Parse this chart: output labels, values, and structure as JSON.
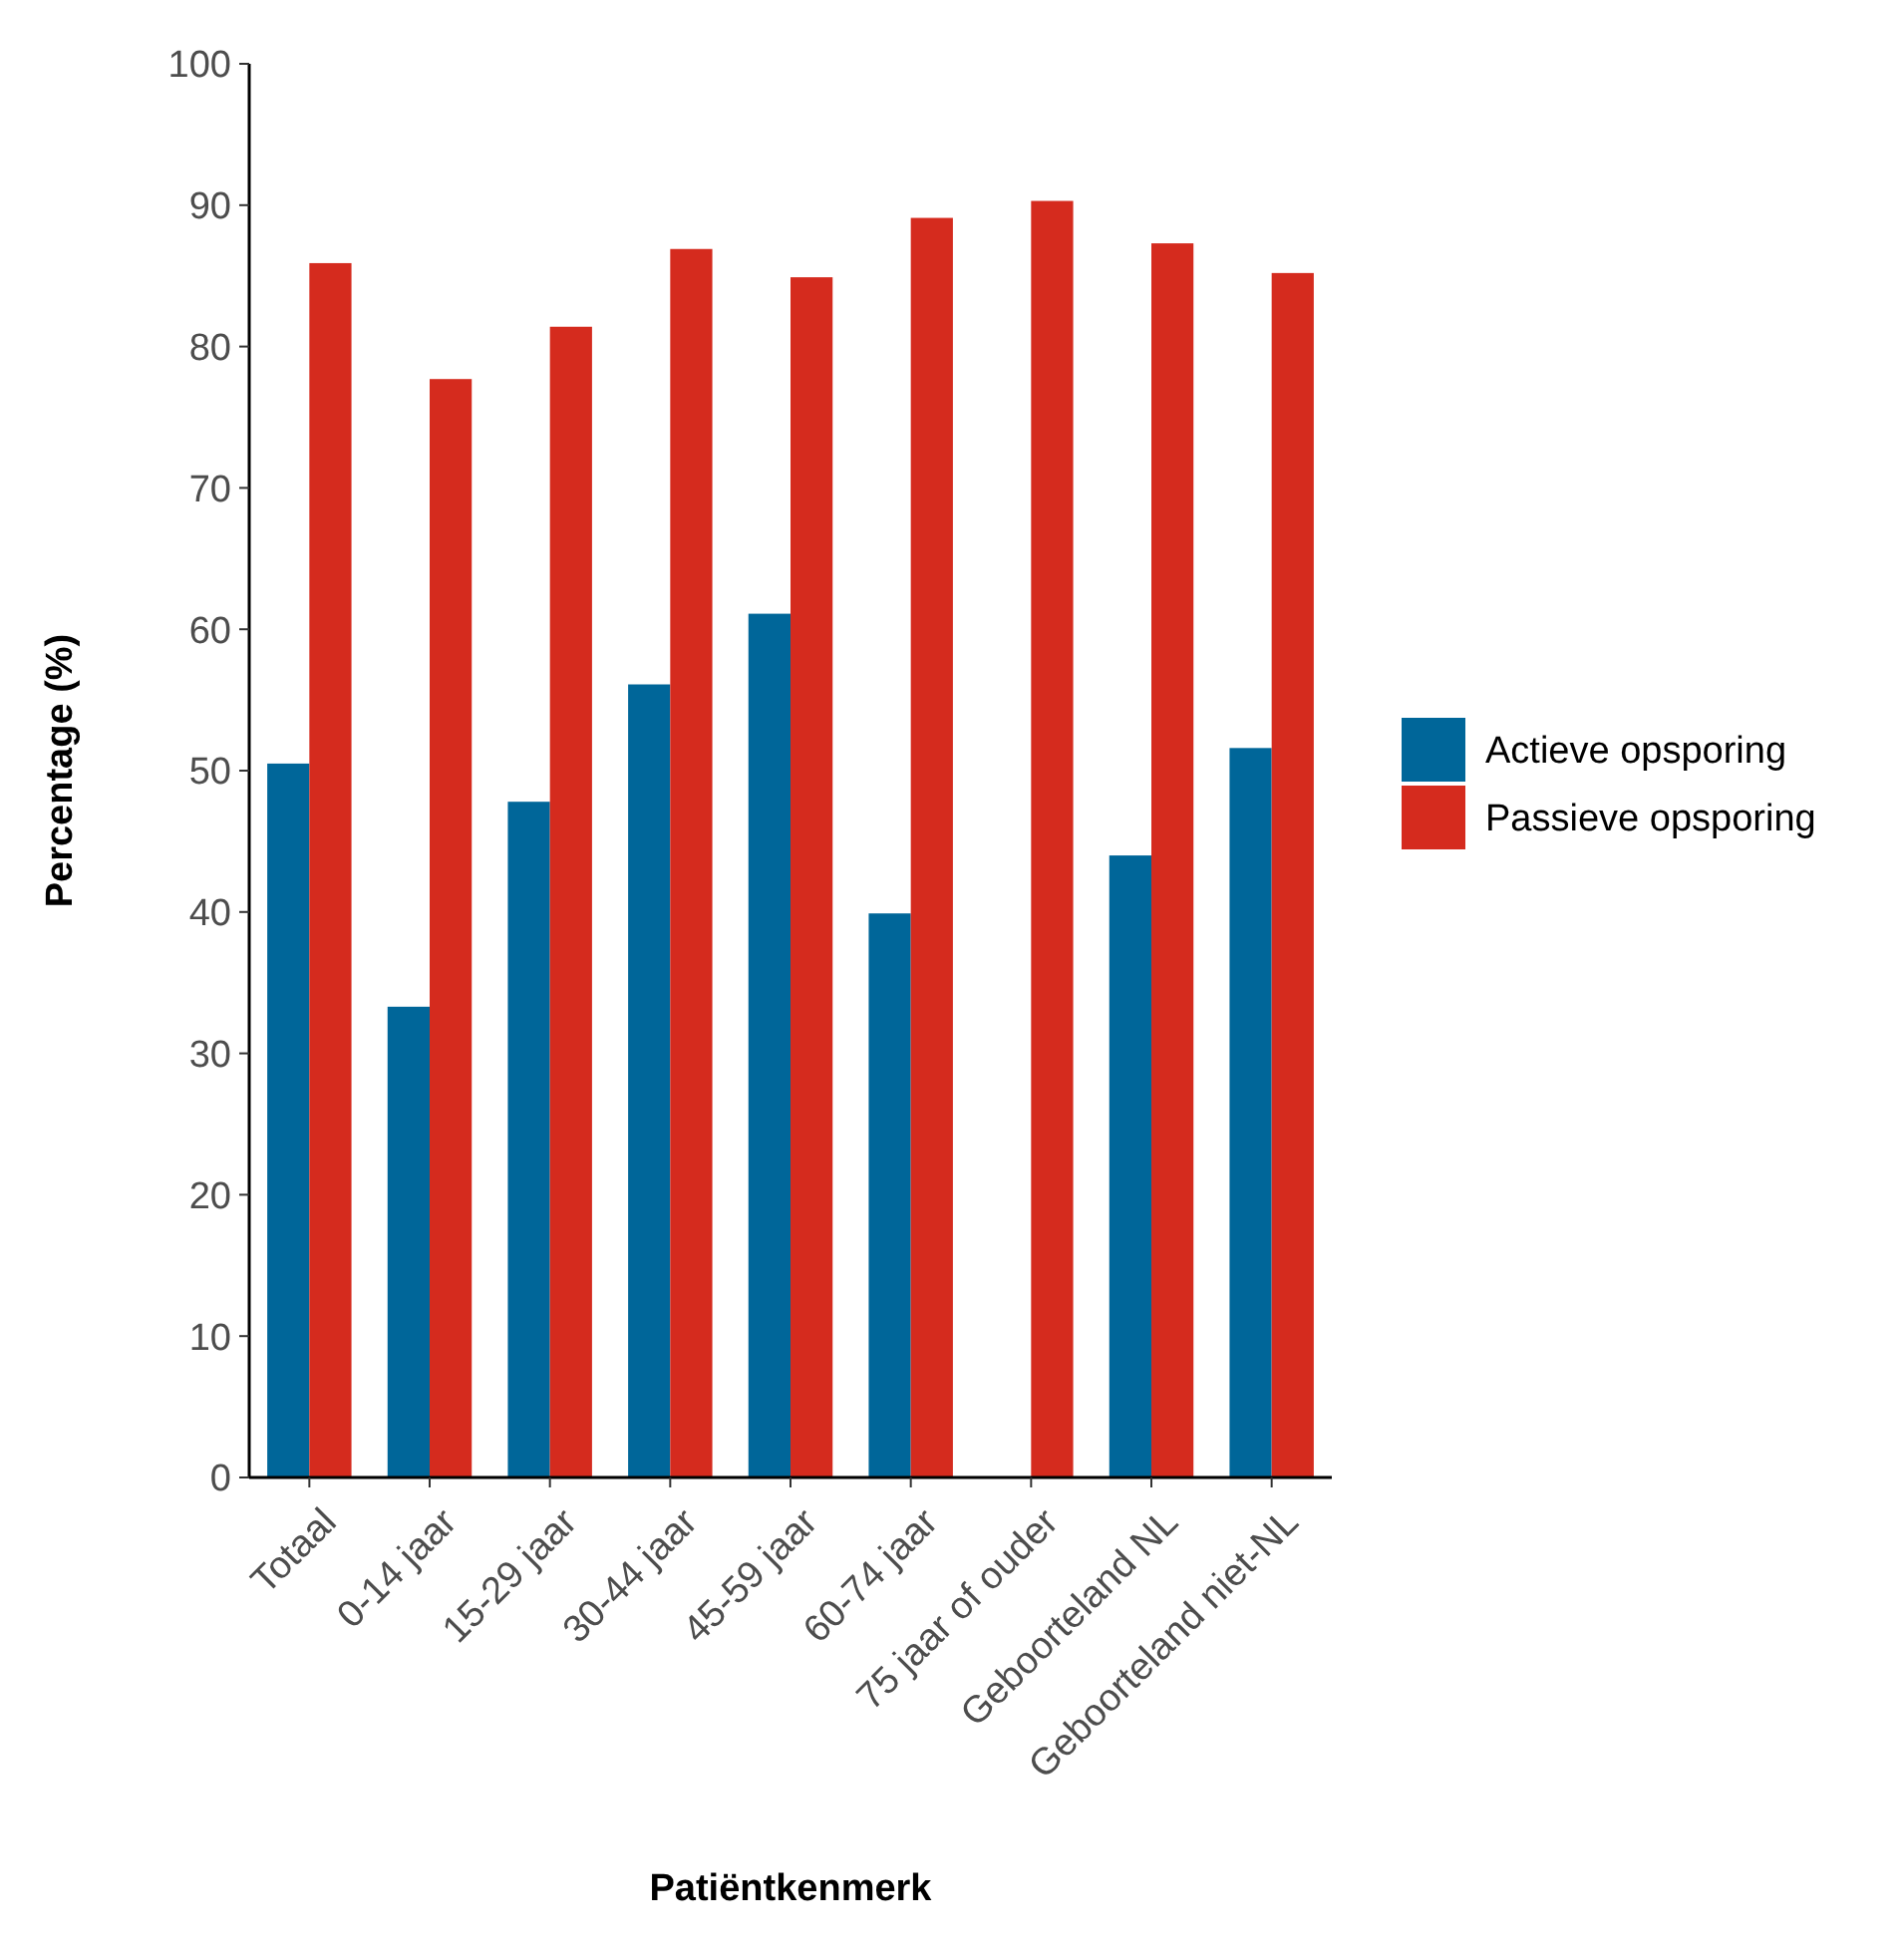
{
  "chart_data": {
    "type": "bar",
    "xlabel": "Patiëntkenmerk",
    "ylabel": "Percentage (%)",
    "categories": [
      "Totaal",
      "0-14 jaar",
      "15-29 jaar",
      "30-44 jaar",
      "45-59 jaar",
      "60-74 jaar",
      "75 jaar of ouder",
      "Geboorteland NL",
      "Geboorteland niet-NL"
    ],
    "series": [
      {
        "name": "Actieve opsporing",
        "color": "#006699",
        "values": [
          50.5,
          33.3,
          47.8,
          56.1,
          61.1,
          39.9,
          null,
          44.0,
          51.6
        ]
      },
      {
        "name": "Passieve opsporing",
        "color": "#d52b1e",
        "values": [
          85.9,
          77.7,
          81.4,
          86.9,
          84.9,
          89.1,
          90.3,
          87.3,
          85.2
        ]
      }
    ],
    "ylim": [
      0,
      100
    ],
    "yticks": [
      0,
      10,
      20,
      30,
      40,
      50,
      60,
      70,
      80,
      90,
      100
    ],
    "grid": false,
    "legend": "right"
  }
}
